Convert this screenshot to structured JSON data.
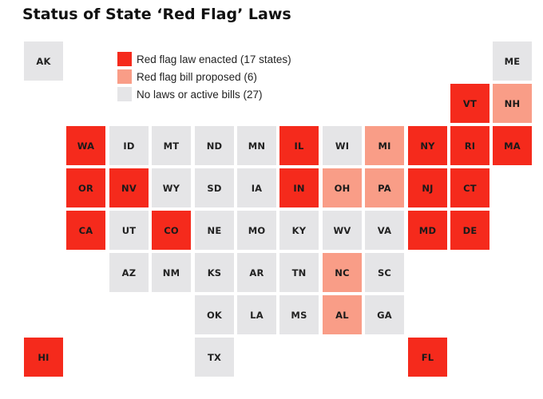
{
  "title": "Status of State ‘Red Flag’ Laws",
  "statuses": {
    "enacted": {
      "label": "Red flag law enacted (17 states)",
      "color": "#f52a1c",
      "text_color": "#1a1a1a"
    },
    "proposed": {
      "label": "Red flag bill proposed (6)",
      "color": "#f99d87",
      "text_color": "#1a1a1a"
    },
    "none": {
      "label": "No laws or active bills (27)",
      "color": "#e5e5e7",
      "text_color": "#222222"
    }
  },
  "legend_order": [
    "enacted",
    "proposed",
    "none"
  ],
  "states": [
    {
      "abbr": "AK",
      "status": "none",
      "col": 0,
      "row": 0
    },
    {
      "abbr": "ME",
      "status": "none",
      "col": 11,
      "row": 0
    },
    {
      "abbr": "VT",
      "status": "enacted",
      "col": 10,
      "row": 1
    },
    {
      "abbr": "NH",
      "status": "proposed",
      "col": 11,
      "row": 1
    },
    {
      "abbr": "WA",
      "status": "enacted",
      "col": 1,
      "row": 2
    },
    {
      "abbr": "ID",
      "status": "none",
      "col": 2,
      "row": 2
    },
    {
      "abbr": "MT",
      "status": "none",
      "col": 3,
      "row": 2
    },
    {
      "abbr": "ND",
      "status": "none",
      "col": 4,
      "row": 2
    },
    {
      "abbr": "MN",
      "status": "none",
      "col": 5,
      "row": 2
    },
    {
      "abbr": "IL",
      "status": "enacted",
      "col": 6,
      "row": 2
    },
    {
      "abbr": "WI",
      "status": "none",
      "col": 7,
      "row": 2
    },
    {
      "abbr": "MI",
      "status": "proposed",
      "col": 8,
      "row": 2
    },
    {
      "abbr": "NY",
      "status": "enacted",
      "col": 9,
      "row": 2
    },
    {
      "abbr": "RI",
      "status": "enacted",
      "col": 10,
      "row": 2
    },
    {
      "abbr": "MA",
      "status": "enacted",
      "col": 11,
      "row": 2
    },
    {
      "abbr": "OR",
      "status": "enacted",
      "col": 1,
      "row": 3
    },
    {
      "abbr": "NV",
      "status": "enacted",
      "col": 2,
      "row": 3
    },
    {
      "abbr": "WY",
      "status": "none",
      "col": 3,
      "row": 3
    },
    {
      "abbr": "SD",
      "status": "none",
      "col": 4,
      "row": 3
    },
    {
      "abbr": "IA",
      "status": "none",
      "col": 5,
      "row": 3
    },
    {
      "abbr": "IN",
      "status": "enacted",
      "col": 6,
      "row": 3
    },
    {
      "abbr": "OH",
      "status": "proposed",
      "col": 7,
      "row": 3
    },
    {
      "abbr": "PA",
      "status": "proposed",
      "col": 8,
      "row": 3
    },
    {
      "abbr": "NJ",
      "status": "enacted",
      "col": 9,
      "row": 3
    },
    {
      "abbr": "CT",
      "status": "enacted",
      "col": 10,
      "row": 3
    },
    {
      "abbr": "CA",
      "status": "enacted",
      "col": 1,
      "row": 4
    },
    {
      "abbr": "UT",
      "status": "none",
      "col": 2,
      "row": 4
    },
    {
      "abbr": "CO",
      "status": "enacted",
      "col": 3,
      "row": 4
    },
    {
      "abbr": "NE",
      "status": "none",
      "col": 4,
      "row": 4
    },
    {
      "abbr": "MO",
      "status": "none",
      "col": 5,
      "row": 4
    },
    {
      "abbr": "KY",
      "status": "none",
      "col": 6,
      "row": 4
    },
    {
      "abbr": "WV",
      "status": "none",
      "col": 7,
      "row": 4
    },
    {
      "abbr": "VA",
      "status": "none",
      "col": 8,
      "row": 4
    },
    {
      "abbr": "MD",
      "status": "enacted",
      "col": 9,
      "row": 4
    },
    {
      "abbr": "DE",
      "status": "enacted",
      "col": 10,
      "row": 4
    },
    {
      "abbr": "AZ",
      "status": "none",
      "col": 2,
      "row": 5
    },
    {
      "abbr": "NM",
      "status": "none",
      "col": 3,
      "row": 5
    },
    {
      "abbr": "KS",
      "status": "none",
      "col": 4,
      "row": 5
    },
    {
      "abbr": "AR",
      "status": "none",
      "col": 5,
      "row": 5
    },
    {
      "abbr": "TN",
      "status": "none",
      "col": 6,
      "row": 5
    },
    {
      "abbr": "NC",
      "status": "proposed",
      "col": 7,
      "row": 5
    },
    {
      "abbr": "SC",
      "status": "none",
      "col": 8,
      "row": 5
    },
    {
      "abbr": "OK",
      "status": "none",
      "col": 4,
      "row": 6
    },
    {
      "abbr": "LA",
      "status": "none",
      "col": 5,
      "row": 6
    },
    {
      "abbr": "MS",
      "status": "none",
      "col": 6,
      "row": 6
    },
    {
      "abbr": "AL",
      "status": "proposed",
      "col": 7,
      "row": 6
    },
    {
      "abbr": "GA",
      "status": "none",
      "col": 8,
      "row": 6
    },
    {
      "abbr": "HI",
      "status": "enacted",
      "col": 0,
      "row": 7
    },
    {
      "abbr": "TX",
      "status": "none",
      "col": 4,
      "row": 7
    },
    {
      "abbr": "FL",
      "status": "enacted",
      "col": 9,
      "row": 7
    }
  ]
}
